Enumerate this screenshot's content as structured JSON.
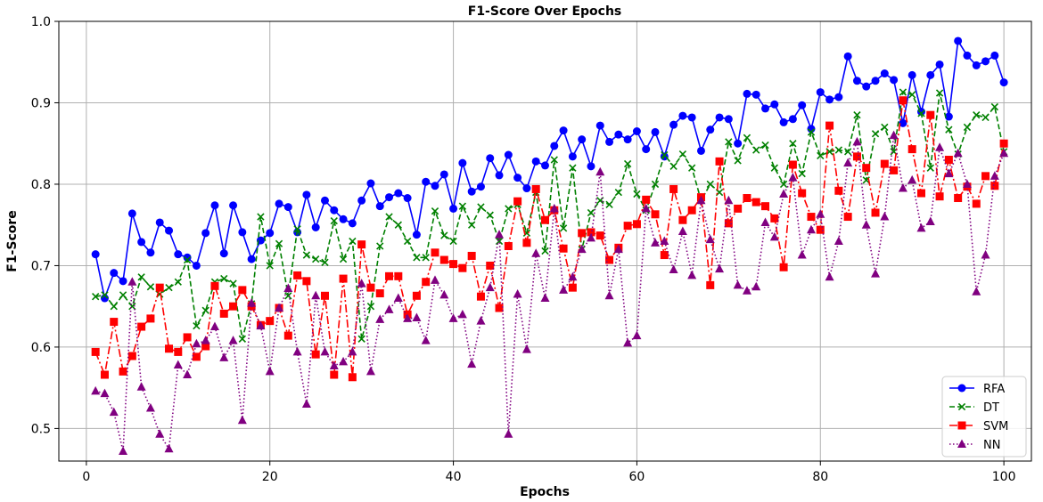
{
  "chart_data": {
    "type": "line",
    "title": "F1-Score Over Epochs",
    "xlabel": "Epochs",
    "ylabel": "F1-Score",
    "xlim": [
      -3,
      103
    ],
    "ylim": [
      0.46,
      1.0
    ],
    "xticks": [
      "0",
      "20",
      "40",
      "60",
      "80",
      "100"
    ],
    "xtick_values": [
      0,
      20,
      40,
      60,
      80,
      100
    ],
    "yticks": [
      "0.5",
      "0.6",
      "0.7",
      "0.8",
      "0.9",
      "1.0"
    ],
    "ytick_values": [
      0.5,
      0.6,
      0.7,
      0.8,
      0.9,
      1.0
    ],
    "grid": true,
    "legend_position": "lower-right",
    "x": [
      1,
      2,
      3,
      4,
      5,
      6,
      7,
      8,
      9,
      10,
      11,
      12,
      13,
      14,
      15,
      16,
      17,
      18,
      19,
      20,
      21,
      22,
      23,
      24,
      25,
      26,
      27,
      28,
      29,
      30,
      31,
      32,
      33,
      34,
      35,
      36,
      37,
      38,
      39,
      40,
      41,
      42,
      43,
      44,
      45,
      46,
      47,
      48,
      49,
      50,
      51,
      52,
      53,
      54,
      55,
      56,
      57,
      58,
      59,
      60,
      61,
      62,
      63,
      64,
      65,
      66,
      67,
      68,
      69,
      70,
      71,
      72,
      73,
      74,
      75,
      76,
      77,
      78,
      79,
      80,
      81,
      82,
      83,
      84,
      85,
      86,
      87,
      88,
      89,
      90,
      91,
      92,
      93,
      94,
      95,
      96,
      97,
      98,
      99,
      100
    ],
    "series": [
      {
        "name": "RFA",
        "color": "#0000ff",
        "linestyle": "solid",
        "marker": "circle",
        "values": [
          0.714,
          0.66,
          0.691,
          0.681,
          0.764,
          0.729,
          0.716,
          0.753,
          0.743,
          0.714,
          0.71,
          0.7,
          0.74,
          0.774,
          0.715,
          0.774,
          0.741,
          0.708,
          0.731,
          0.74,
          0.776,
          0.772,
          0.741,
          0.787,
          0.747,
          0.78,
          0.768,
          0.757,
          0.752,
          0.78,
          0.801,
          0.773,
          0.784,
          0.789,
          0.783,
          0.738,
          0.803,
          0.798,
          0.812,
          0.77,
          0.826,
          0.791,
          0.797,
          0.832,
          0.811,
          0.836,
          0.808,
          0.795,
          0.828,
          0.823,
          0.847,
          0.866,
          0.834,
          0.855,
          0.822,
          0.872,
          0.852,
          0.861,
          0.855,
          0.865,
          0.843,
          0.864,
          0.834,
          0.873,
          0.884,
          0.882,
          0.841,
          0.867,
          0.882,
          0.88,
          0.85,
          0.911,
          0.91,
          0.893,
          0.898,
          0.876,
          0.88,
          0.897,
          0.868,
          0.913,
          0.904,
          0.907,
          0.957,
          0.927,
          0.92,
          0.927,
          0.936,
          0.928,
          0.875,
          0.934,
          0.889,
          0.934,
          0.947,
          0.883,
          0.976,
          0.958,
          0.946,
          0.951,
          0.958,
          0.925
        ]
      },
      {
        "name": "DT",
        "color": "#008000",
        "linestyle": "dashed",
        "marker": "x",
        "values": [
          0.662,
          0.664,
          0.65,
          0.664,
          0.65,
          0.686,
          0.674,
          0.665,
          0.673,
          0.68,
          0.707,
          0.626,
          0.645,
          0.68,
          0.684,
          0.678,
          0.61,
          0.653,
          0.76,
          0.7,
          0.727,
          0.663,
          0.745,
          0.713,
          0.708,
          0.704,
          0.755,
          0.708,
          0.73,
          0.61,
          0.65,
          0.724,
          0.76,
          0.75,
          0.73,
          0.71,
          0.71,
          0.767,
          0.737,
          0.73,
          0.773,
          0.75,
          0.772,
          0.762,
          0.73,
          0.77,
          0.775,
          0.74,
          0.79,
          0.718,
          0.83,
          0.746,
          0.82,
          0.72,
          0.765,
          0.78,
          0.775,
          0.79,
          0.825,
          0.788,
          0.768,
          0.8,
          0.836,
          0.822,
          0.837,
          0.82,
          0.78,
          0.8,
          0.79,
          0.852,
          0.829,
          0.857,
          0.842,
          0.848,
          0.82,
          0.8,
          0.85,
          0.813,
          0.864,
          0.835,
          0.84,
          0.842,
          0.84,
          0.885,
          0.805,
          0.862,
          0.87,
          0.84,
          0.913,
          0.91,
          0.887,
          0.82,
          0.912,
          0.867,
          0.837,
          0.87,
          0.885,
          0.882,
          0.895,
          0.84
        ]
      },
      {
        "name": "SVM",
        "color": "#ff0000",
        "linestyle": "dashdot",
        "marker": "square",
        "values": [
          0.594,
          0.566,
          0.631,
          0.57,
          0.589,
          0.625,
          0.635,
          0.673,
          0.598,
          0.594,
          0.612,
          0.588,
          0.601,
          0.675,
          0.641,
          0.65,
          0.67,
          0.65,
          0.627,
          0.632,
          0.648,
          0.614,
          0.688,
          0.681,
          0.591,
          0.663,
          0.566,
          0.684,
          0.563,
          0.726,
          0.673,
          0.666,
          0.687,
          0.687,
          0.64,
          0.663,
          0.68,
          0.716,
          0.707,
          0.702,
          0.697,
          0.712,
          0.662,
          0.7,
          0.648,
          0.724,
          0.779,
          0.728,
          0.794,
          0.756,
          0.768,
          0.721,
          0.673,
          0.74,
          0.741,
          0.737,
          0.707,
          0.722,
          0.749,
          0.751,
          0.781,
          0.763,
          0.713,
          0.794,
          0.756,
          0.768,
          0.784,
          0.676,
          0.828,
          0.752,
          0.77,
          0.783,
          0.778,
          0.773,
          0.758,
          0.698,
          0.824,
          0.789,
          0.76,
          0.744,
          0.872,
          0.792,
          0.76,
          0.834,
          0.82,
          0.765,
          0.825,
          0.817,
          0.903,
          0.843,
          0.789,
          0.885,
          0.785,
          0.83,
          0.783,
          0.797,
          0.776,
          0.81,
          0.798,
          0.85
        ]
      },
      {
        "name": "NN",
        "color": "#800080",
        "linestyle": "dotted",
        "marker": "triangle",
        "values": [
          0.546,
          0.543,
          0.52,
          0.472,
          0.68,
          0.551,
          0.525,
          0.493,
          0.475,
          0.578,
          0.566,
          0.604,
          0.608,
          0.625,
          0.587,
          0.608,
          0.51,
          0.654,
          0.626,
          0.57,
          0.648,
          0.672,
          0.594,
          0.53,
          0.663,
          0.594,
          0.577,
          0.582,
          0.594,
          0.678,
          0.57,
          0.634,
          0.646,
          0.66,
          0.635,
          0.636,
          0.608,
          0.682,
          0.664,
          0.635,
          0.64,
          0.579,
          0.632,
          0.673,
          0.738,
          0.493,
          0.665,
          0.597,
          0.715,
          0.66,
          0.77,
          0.67,
          0.686,
          0.72,
          0.734,
          0.815,
          0.663,
          0.72,
          0.605,
          0.614,
          0.77,
          0.728,
          0.73,
          0.695,
          0.742,
          0.688,
          0.78,
          0.732,
          0.696,
          0.78,
          0.676,
          0.669,
          0.674,
          0.753,
          0.735,
          0.788,
          0.808,
          0.713,
          0.744,
          0.763,
          0.686,
          0.73,
          0.826,
          0.852,
          0.75,
          0.69,
          0.76,
          0.86,
          0.795,
          0.805,
          0.746,
          0.754,
          0.845,
          0.813,
          0.838,
          0.8,
          0.668,
          0.713,
          0.81,
          0.838
        ]
      }
    ]
  }
}
